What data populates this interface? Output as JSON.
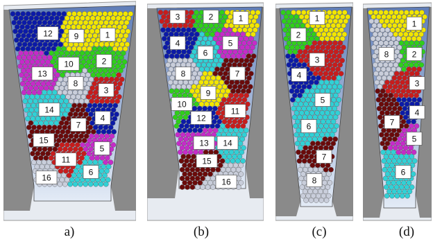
{
  "colors": {
    "yellow": "#f2e600",
    "green": "#2fcf1b",
    "blue": "#0b1aa8",
    "red": "#c81c1c",
    "magenta": "#c62bc9",
    "cyan": "#31d1d6",
    "maroon": "#6a0a0a",
    "grey": "#c9cedb",
    "bin_bg": "#8fa6cf",
    "bin_outline": "#333333"
  },
  "panels": [
    {
      "caption": "a)",
      "regions": [
        {
          "label": "1",
          "color": "yellow"
        },
        {
          "label": "2",
          "color": "green"
        },
        {
          "label": "3",
          "color": "red"
        },
        {
          "label": "4",
          "color": "blue"
        },
        {
          "label": "5",
          "color": "magenta"
        },
        {
          "label": "6",
          "color": "cyan"
        },
        {
          "label": "7",
          "color": "maroon"
        },
        {
          "label": "8",
          "color": "grey"
        },
        {
          "label": "9",
          "color": "yellow"
        },
        {
          "label": "10",
          "color": "green"
        },
        {
          "label": "11",
          "color": "red"
        },
        {
          "label": "12",
          "color": "blue"
        },
        {
          "label": "13",
          "color": "magenta"
        },
        {
          "label": "14",
          "color": "cyan"
        },
        {
          "label": "15",
          "color": "maroon"
        },
        {
          "label": "16",
          "color": "grey"
        }
      ]
    },
    {
      "caption": "(b)",
      "regions": [
        {
          "label": "1",
          "color": "yellow"
        },
        {
          "label": "2",
          "color": "green"
        },
        {
          "label": "3",
          "color": "red"
        },
        {
          "label": "4",
          "color": "blue"
        },
        {
          "label": "5",
          "color": "magenta"
        },
        {
          "label": "6",
          "color": "cyan"
        },
        {
          "label": "7",
          "color": "maroon"
        },
        {
          "label": "8",
          "color": "grey"
        },
        {
          "label": "9",
          "color": "yellow"
        },
        {
          "label": "10",
          "color": "green"
        },
        {
          "label": "11",
          "color": "red"
        },
        {
          "label": "12",
          "color": "blue"
        },
        {
          "label": "13",
          "color": "magenta"
        },
        {
          "label": "14",
          "color": "cyan"
        },
        {
          "label": "15",
          "color": "maroon"
        },
        {
          "label": "16",
          "color": "grey"
        }
      ]
    },
    {
      "caption": "(c)",
      "regions": [
        {
          "label": "1",
          "color": "yellow"
        },
        {
          "label": "2",
          "color": "green"
        },
        {
          "label": "3",
          "color": "red"
        },
        {
          "label": "4",
          "color": "blue"
        },
        {
          "label": "5",
          "color": "cyan"
        },
        {
          "label": "6",
          "color": "cyan"
        },
        {
          "label": "7",
          "color": "maroon"
        },
        {
          "label": "8",
          "color": "grey"
        }
      ]
    },
    {
      "caption": "(d)",
      "regions": [
        {
          "label": "1",
          "color": "yellow"
        },
        {
          "label": "2",
          "color": "green"
        },
        {
          "label": "3",
          "color": "red"
        },
        {
          "label": "4",
          "color": "blue"
        },
        {
          "label": "5",
          "color": "magenta"
        },
        {
          "label": "6",
          "color": "cyan"
        },
        {
          "label": "7",
          "color": "maroon"
        },
        {
          "label": "8",
          "color": "grey"
        }
      ]
    }
  ]
}
